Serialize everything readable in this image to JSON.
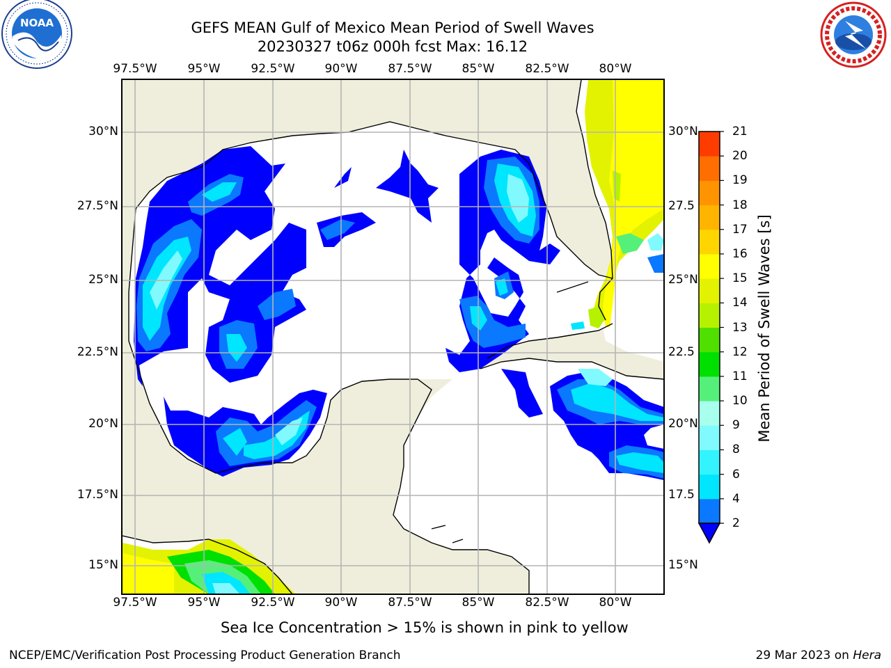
{
  "header": {
    "title": "GEFS MEAN Gulf of Mexico Mean Period of Swell Waves",
    "subtitle": "20230327 t06z 000h fcst   Max: 16.12"
  },
  "map": {
    "lon_labels": [
      "97.5°W",
      "95°W",
      "92.5°W",
      "90°W",
      "87.5°W",
      "85°W",
      "82.5°W",
      "80°W"
    ],
    "lat_labels_left": [
      "30°N",
      "27.5°N",
      "25°N",
      "22.5°N",
      "20°N",
      "17.5°N",
      "15°N"
    ],
    "lat_labels_right": [
      "30°N",
      "27.5",
      "25°N",
      "22.5",
      "20°N",
      "17.5",
      "15°N"
    ],
    "land_color": "#efeedc",
    "water_color": "#ffffff",
    "grid_color": "#b4b4b4"
  },
  "colorbar": {
    "title": "Mean Period of Swell Waves [s]",
    "ticks": [
      "2",
      "4",
      "6",
      "8",
      "9",
      "10",
      "11",
      "12",
      "13",
      "14",
      "15",
      "16",
      "17",
      "18",
      "19",
      "20",
      "21"
    ],
    "colors": [
      "#0a78ff",
      "#00e6ff",
      "#33f3ff",
      "#80faff",
      "#a8ffee",
      "#55f07a",
      "#00e000",
      "#4fe000",
      "#b6f200",
      "#e3f200",
      "#ffff00",
      "#ffd500",
      "#ffb400",
      "#ff9400",
      "#ff6e00",
      "#ff3c00",
      "#ff0000"
    ],
    "extend_color": "#0000ff"
  },
  "logos": {
    "noaa_text": "NOAA",
    "noaa_ring": "NATIONAL OCEANIC AND ATMOSPHERIC ADMINISTRATION · U.S. DEPARTMENT OF COMMERCE",
    "nws_ring": "NATIONAL WEATHER SERVICE"
  },
  "footer": {
    "note": "Sea Ice Concentration > 15% is shown in pink to yellow",
    "credit": "NCEP/EMC/Verification Post Processing Product Generation Branch",
    "date": "29 Mar 2023 on ",
    "host": "Hera"
  }
}
